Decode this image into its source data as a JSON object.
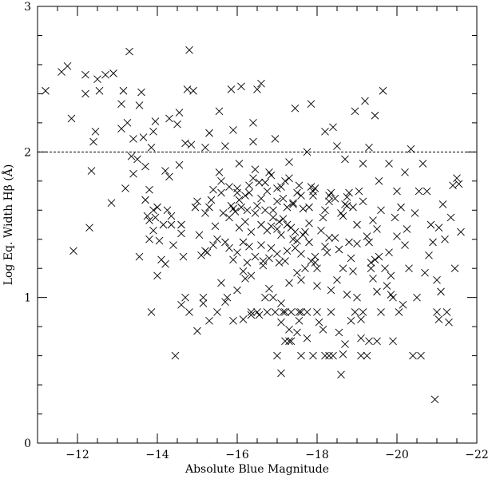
{
  "chart_data": {
    "type": "scatter",
    "title": "",
    "xlabel": "Absolute Blue Magnitude",
    "ylabel": "Log Eq. Width Hβ (Å)",
    "xlim": [
      -11,
      -22
    ],
    "ylim": [
      0,
      3
    ],
    "x_ticks": [
      -12,
      -14,
      -16,
      -18,
      -20,
      -22
    ],
    "y_ticks": [
      0,
      1,
      2,
      3
    ],
    "x_tick_labels": [
      "−12",
      "−14",
      "−16",
      "−18",
      "−20",
      "−22"
    ],
    "y_tick_labels": [
      "0",
      "1",
      "2",
      "3"
    ],
    "marker": "x",
    "marker_color": "#000000",
    "grid": false,
    "reference_line": {
      "y": 2.0,
      "style": "dashed"
    },
    "points": [
      [
        -11.2,
        2.42
      ],
      [
        -11.6,
        2.55
      ],
      [
        -11.75,
        2.59
      ],
      [
        -11.85,
        2.23
      ],
      [
        -11.9,
        1.32
      ],
      [
        -12.2,
        2.4
      ],
      [
        -12.2,
        2.53
      ],
      [
        -12.3,
        1.48
      ],
      [
        -12.35,
        1.87
      ],
      [
        -12.4,
        2.07
      ],
      [
        -12.45,
        2.14
      ],
      [
        -12.5,
        2.5
      ],
      [
        -12.55,
        2.42
      ],
      [
        -12.7,
        2.53
      ],
      [
        -12.85,
        1.65
      ],
      [
        -12.9,
        2.54
      ],
      [
        -13.1,
        2.33
      ],
      [
        -13.1,
        2.16
      ],
      [
        -13.15,
        2.42
      ],
      [
        -13.2,
        1.75
      ],
      [
        -13.25,
        2.2
      ],
      [
        -13.3,
        2.69
      ],
      [
        -13.35,
        1.97
      ],
      [
        -13.4,
        2.09
      ],
      [
        -13.4,
        1.85
      ],
      [
        -13.5,
        1.95
      ],
      [
        -13.55,
        2.32
      ],
      [
        -13.55,
        1.28
      ],
      [
        -13.6,
        2.41
      ],
      [
        -13.65,
        2.1
      ],
      [
        -13.7,
        1.67
      ],
      [
        -13.7,
        1.9
      ],
      [
        -13.75,
        1.56
      ],
      [
        -13.8,
        1.4
      ],
      [
        -13.8,
        1.53
      ],
      [
        -13.8,
        1.74
      ],
      [
        -13.85,
        0.9
      ],
      [
        -13.85,
        2.03
      ],
      [
        -13.9,
        1.46
      ],
      [
        -13.9,
        2.14
      ],
      [
        -13.95,
        2.21
      ],
      [
        -14.0,
        1.62
      ],
      [
        -14.0,
        1.15
      ],
      [
        -14.05,
        1.39
      ],
      [
        -14.1,
        1.26
      ],
      [
        -14.15,
        1.5
      ],
      [
        -14.2,
        1.23
      ],
      [
        -14.2,
        1.87
      ],
      [
        -14.25,
        1.6
      ],
      [
        -14.3,
        1.83
      ],
      [
        -14.3,
        2.23
      ],
      [
        -14.35,
        1.56
      ],
      [
        -14.4,
        1.36
      ],
      [
        -14.45,
        0.6
      ],
      [
        -14.5,
        2.19
      ],
      [
        -14.55,
        2.27
      ],
      [
        -14.55,
        1.91
      ],
      [
        -14.6,
        1.5
      ],
      [
        -14.6,
        1.44
      ],
      [
        -14.65,
        1.28
      ],
      [
        -14.7,
        2.06
      ],
      [
        -14.75,
        2.43
      ],
      [
        -14.8,
        0.9
      ],
      [
        -14.8,
        2.7
      ],
      [
        -14.85,
        2.05
      ],
      [
        -14.9,
        2.42
      ],
      [
        -14.95,
        1.62
      ],
      [
        -15.0,
        1.66
      ],
      [
        -15.0,
        0.77
      ],
      [
        -15.05,
        1.43
      ],
      [
        -15.1,
        1.29
      ],
      [
        -15.15,
        1.0
      ],
      [
        -15.15,
        0.96
      ],
      [
        -15.2,
        1.58
      ],
      [
        -15.2,
        2.03
      ],
      [
        -15.25,
        1.31
      ],
      [
        -15.3,
        2.13
      ],
      [
        -15.3,
        1.62
      ],
      [
        -15.35,
        1.67
      ],
      [
        -15.4,
        1.74
      ],
      [
        -15.45,
        1.49
      ],
      [
        -15.5,
        1.4
      ],
      [
        -15.55,
        1.86
      ],
      [
        -15.55,
        2.28
      ],
      [
        -15.6,
        1.72
      ],
      [
        -15.6,
        1.1
      ],
      [
        -15.65,
        1.58
      ],
      [
        -15.7,
        0.97
      ],
      [
        -15.7,
        2.04
      ],
      [
        -15.75,
        1.0
      ],
      [
        -15.8,
        1.34
      ],
      [
        -15.8,
        1.55
      ],
      [
        -15.85,
        2.43
      ],
      [
        -15.9,
        0.84
      ],
      [
        -15.9,
        2.15
      ],
      [
        -15.95,
        1.59
      ],
      [
        -16.0,
        1.75
      ],
      [
        -16.0,
        1.31
      ],
      [
        -16.05,
        1.67
      ],
      [
        -16.1,
        1.62
      ],
      [
        -16.1,
        2.45
      ],
      [
        -16.15,
        0.85
      ],
      [
        -16.15,
        1.38
      ],
      [
        -16.2,
        1.13
      ],
      [
        -16.25,
        1.24
      ],
      [
        -16.3,
        1.72
      ],
      [
        -16.3,
        1.77
      ],
      [
        -16.35,
        1.45
      ],
      [
        -16.35,
        0.88
      ],
      [
        -16.4,
        2.2
      ],
      [
        -16.4,
        2.07
      ],
      [
        -16.45,
        1.58
      ],
      [
        -16.5,
        0.9
      ],
      [
        -16.5,
        2.43
      ],
      [
        -16.55,
        1.79
      ],
      [
        -16.6,
        2.47
      ],
      [
        -16.6,
        1.36
      ],
      [
        -16.65,
        1.22
      ],
      [
        -16.7,
        1.6
      ],
      [
        -16.7,
        1.0
      ],
      [
        -16.75,
        1.73
      ],
      [
        -16.8,
        1.27
      ],
      [
        -16.8,
        1.86
      ],
      [
        -16.85,
        1.49
      ],
      [
        -16.9,
        1.0
      ],
      [
        -16.9,
        1.6
      ],
      [
        -16.95,
        2.09
      ],
      [
        -17.0,
        1.75
      ],
      [
        -17.0,
        1.3
      ],
      [
        -17.05,
        1.24
      ],
      [
        -17.1,
        1.43
      ],
      [
        -17.1,
        0.96
      ],
      [
        -17.15,
        1.68
      ],
      [
        -17.2,
        1.25
      ],
      [
        -17.2,
        0.9
      ],
      [
        -17.25,
        1.62
      ],
      [
        -17.3,
        1.82
      ],
      [
        -17.3,
        1.93
      ],
      [
        -17.35,
        1.48
      ],
      [
        -17.4,
        1.65
      ],
      [
        -17.45,
        1.34
      ],
      [
        -17.45,
        2.3
      ],
      [
        -17.5,
        1.39
      ],
      [
        -17.5,
        1.17
      ],
      [
        -17.55,
        0.84
      ],
      [
        -17.6,
        0.9
      ],
      [
        -17.6,
        1.7
      ],
      [
        -17.65,
        1.61
      ],
      [
        -17.7,
        1.2
      ],
      [
        -17.7,
        1.45
      ],
      [
        -17.75,
        2.0
      ],
      [
        -17.8,
        1.51
      ],
      [
        -17.85,
        2.33
      ],
      [
        -17.85,
        1.76
      ],
      [
        -17.9,
        1.73
      ],
      [
        -17.95,
        1.24
      ],
      [
        -18.0,
        0.9
      ],
      [
        -18.0,
        1.08
      ],
      [
        -18.05,
        0.83
      ],
      [
        -18.1,
        1.46
      ],
      [
        -18.15,
        1.55
      ],
      [
        -18.2,
        0.6
      ],
      [
        -18.2,
        2.14
      ],
      [
        -18.25,
        1.31
      ],
      [
        -18.3,
        1.41
      ],
      [
        -18.3,
        1.7
      ],
      [
        -18.35,
        0.9
      ],
      [
        -18.4,
        2.17
      ],
      [
        -18.45,
        1.68
      ],
      [
        -18.5,
        1.12
      ],
      [
        -18.5,
        2.04
      ],
      [
        -18.55,
        0.76
      ],
      [
        -18.6,
        0.47
      ],
      [
        -18.65,
        0.61
      ],
      [
        -18.65,
        1.56
      ],
      [
        -18.7,
        1.95
      ],
      [
        -18.75,
        1.63
      ],
      [
        -18.8,
        1.72
      ],
      [
        -18.85,
        1.27
      ],
      [
        -18.85,
        0.84
      ],
      [
        -18.9,
        1.62
      ],
      [
        -18.95,
        2.28
      ],
      [
        -19.0,
        1.5
      ],
      [
        -19.05,
        1.73
      ],
      [
        -19.1,
        0.85
      ],
      [
        -19.1,
        0.6
      ],
      [
        -19.15,
        1.92
      ],
      [
        -19.2,
        2.35
      ],
      [
        -19.25,
        0.6
      ],
      [
        -19.3,
        2.03
      ],
      [
        -19.3,
        1.38
      ],
      [
        -19.35,
        1.2
      ],
      [
        -19.4,
        1.13
      ],
      [
        -19.4,
        1.53
      ],
      [
        -19.45,
        2.25
      ],
      [
        -19.5,
        1.04
      ],
      [
        -19.5,
        1.47
      ],
      [
        -19.55,
        1.8
      ],
      [
        -19.6,
        0.9
      ],
      [
        -19.6,
        1.6
      ],
      [
        -19.65,
        2.42
      ],
      [
        -19.7,
        1.2
      ],
      [
        -19.75,
        1.08
      ],
      [
        -19.8,
        1.31
      ],
      [
        -19.8,
        1.92
      ],
      [
        -19.85,
        1.15
      ],
      [
        -19.9,
        1.0
      ],
      [
        -19.95,
        1.55
      ],
      [
        -20.0,
        1.42
      ],
      [
        -20.0,
        1.73
      ],
      [
        -20.05,
        0.9
      ],
      [
        -20.1,
        1.62
      ],
      [
        -20.15,
        0.95
      ],
      [
        -20.2,
        1.36
      ],
      [
        -20.2,
        1.86
      ],
      [
        -20.25,
        1.47
      ],
      [
        -20.3,
        1.2
      ],
      [
        -20.35,
        2.02
      ],
      [
        -20.4,
        0.6
      ],
      [
        -20.45,
        1.58
      ],
      [
        -20.5,
        1.0
      ],
      [
        -20.55,
        1.73
      ],
      [
        -20.6,
        0.6
      ],
      [
        -20.65,
        1.92
      ],
      [
        -20.7,
        1.17
      ],
      [
        -20.75,
        1.73
      ],
      [
        -20.8,
        1.29
      ],
      [
        -20.85,
        1.5
      ],
      [
        -20.9,
        1.38
      ],
      [
        -21.0,
        1.12
      ],
      [
        -21.05,
        1.48
      ],
      [
        -21.1,
        1.04
      ],
      [
        -21.15,
        1.64
      ],
      [
        -21.2,
        1.4
      ],
      [
        -21.25,
        0.9
      ],
      [
        -21.3,
        0.83
      ],
      [
        -21.35,
        1.55
      ],
      [
        -21.4,
        1.77
      ],
      [
        -21.45,
        1.2
      ],
      [
        -21.5,
        1.82
      ],
      [
        -21.55,
        1.78
      ],
      [
        -21.6,
        1.45
      ],
      [
        -20.95,
        0.3
      ],
      [
        -21.0,
        0.9
      ],
      [
        -21.05,
        0.85
      ],
      [
        -16.35,
        0.9
      ],
      [
        -16.55,
        0.88
      ],
      [
        -16.75,
        0.9
      ],
      [
        -16.95,
        0.9
      ],
      [
        -17.15,
        0.9
      ],
      [
        -17.35,
        0.9
      ],
      [
        -17.55,
        0.9
      ],
      [
        -17.75,
        0.9
      ],
      [
        -18.95,
        0.9
      ],
      [
        -19.15,
        0.9
      ],
      [
        -17.3,
        0.7
      ],
      [
        -17.35,
        0.7
      ],
      [
        -17.2,
        0.7
      ],
      [
        -17.0,
        0.6
      ],
      [
        -17.1,
        0.48
      ],
      [
        -17.6,
        0.6
      ],
      [
        -17.9,
        0.6
      ],
      [
        -18.3,
        0.6
      ],
      [
        -18.4,
        0.6
      ],
      [
        -19.3,
        0.7
      ],
      [
        -19.5,
        0.7
      ],
      [
        -19.9,
        0.7
      ],
      [
        -15.5,
        0.9
      ],
      [
        -15.3,
        0.84
      ],
      [
        -14.6,
        0.95
      ],
      [
        -14.7,
        1.0
      ],
      [
        -13.9,
        1.6
      ],
      [
        -13.95,
        1.55
      ],
      [
        -14.35,
        1.5
      ],
      [
        -15.85,
        1.63
      ],
      [
        -15.9,
        1.61
      ],
      [
        -16.25,
        1.6
      ],
      [
        -16.5,
        1.63
      ],
      [
        -16.9,
        1.55
      ],
      [
        -17.05,
        1.52
      ],
      [
        -17.15,
        1.54
      ],
      [
        -17.25,
        1.5
      ],
      [
        -17.45,
        1.45
      ],
      [
        -17.65,
        1.43
      ],
      [
        -18.45,
        1.41
      ],
      [
        -18.8,
        1.38
      ],
      [
        -19.0,
        1.37
      ],
      [
        -19.25,
        1.42
      ],
      [
        -19.45,
        1.26
      ],
      [
        -19.35,
        1.24
      ],
      [
        -19.55,
        1.28
      ],
      [
        -15.2,
        1.32
      ],
      [
        -15.4,
        1.36
      ],
      [
        -15.7,
        1.38
      ],
      [
        -15.9,
        1.26
      ],
      [
        -16.45,
        1.28
      ],
      [
        -16.65,
        1.25
      ],
      [
        -17.85,
        1.25
      ],
      [
        -18.0,
        1.2
      ],
      [
        -18.65,
        1.2
      ],
      [
        -18.9,
        1.18
      ],
      [
        -16.15,
        1.18
      ],
      [
        -16.35,
        1.15
      ],
      [
        -16.0,
        1.05
      ],
      [
        -16.8,
        1.06
      ],
      [
        -17.3,
        1.1
      ],
      [
        -17.6,
        1.12
      ],
      [
        -18.35,
        1.05
      ],
      [
        -18.75,
        1.02
      ],
      [
        -19.0,
        1.0
      ],
      [
        -19.85,
        1.02
      ],
      [
        -17.1,
        0.83
      ],
      [
        -17.3,
        0.78
      ],
      [
        -17.5,
        0.76
      ],
      [
        -17.75,
        0.72
      ],
      [
        -18.15,
        0.78
      ],
      [
        -18.7,
        0.68
      ],
      [
        -19.1,
        0.72
      ],
      [
        -16.05,
        1.48
      ],
      [
        -16.2,
        1.52
      ],
      [
        -16.6,
        1.5
      ],
      [
        -16.75,
        1.46
      ],
      [
        -17.0,
        1.47
      ],
      [
        -17.4,
        1.4
      ],
      [
        -17.8,
        1.38
      ],
      [
        -18.2,
        1.35
      ],
      [
        -18.55,
        1.33
      ],
      [
        -16.3,
        1.35
      ],
      [
        -16.85,
        1.34
      ],
      [
        -17.25,
        1.32
      ],
      [
        -17.6,
        1.3
      ],
      [
        -17.95,
        1.28
      ],
      [
        -16.05,
        1.92
      ],
      [
        -16.45,
        1.88
      ],
      [
        -16.85,
        1.84
      ],
      [
        -17.2,
        1.8
      ],
      [
        -17.55,
        1.77
      ],
      [
        -17.95,
        1.75
      ],
      [
        -18.35,
        1.72
      ],
      [
        -18.75,
        1.69
      ],
      [
        -19.15,
        1.66
      ],
      [
        -16.2,
        1.7
      ],
      [
        -16.6,
        1.68
      ],
      [
        -17.0,
        1.66
      ],
      [
        -17.4,
        1.64
      ],
      [
        -17.8,
        1.62
      ],
      [
        -18.2,
        1.6
      ],
      [
        -18.6,
        1.58
      ],
      [
        -15.6,
        1.8
      ],
      [
        -15.8,
        1.76
      ],
      [
        -16.0,
        1.72
      ],
      [
        -16.4,
        1.82
      ],
      [
        -16.7,
        1.79
      ],
      [
        -17.1,
        1.76
      ],
      [
        -17.5,
        1.72
      ],
      [
        -17.9,
        1.7
      ],
      [
        -18.3,
        1.66
      ],
      [
        -18.7,
        1.64
      ]
    ]
  }
}
